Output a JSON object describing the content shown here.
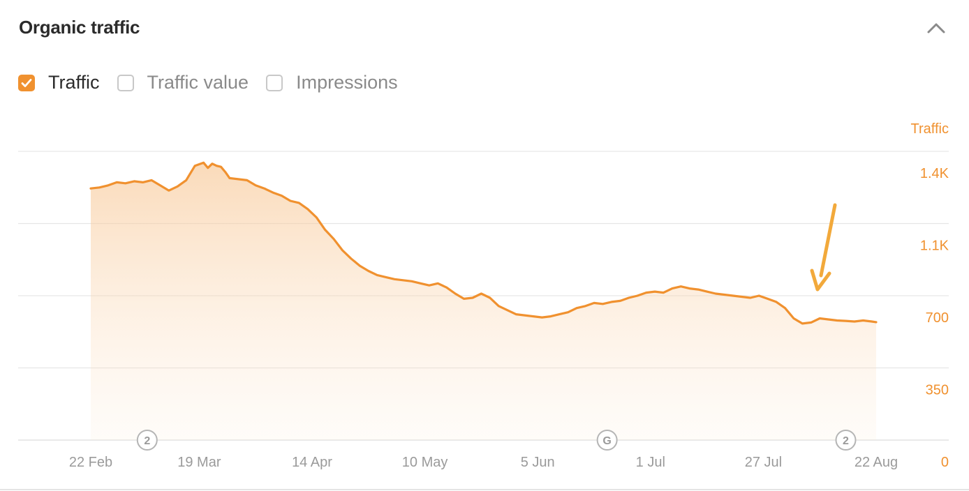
{
  "title": "Organic traffic",
  "toggles": [
    {
      "label": "Traffic",
      "checked": true
    },
    {
      "label": "Traffic value",
      "checked": false
    },
    {
      "label": "Impressions",
      "checked": false
    }
  ],
  "icons": {
    "collapse": "chevron-up-icon",
    "check": "check-icon"
  },
  "colors": {
    "accent": "#f0912f",
    "arrow": "#f2a93b",
    "grid": "#e6e6e6",
    "axis_text": "#9a9a9a",
    "marker": "#b5b5b5"
  },
  "chart_data": {
    "type": "area",
    "ylabel": "Traffic",
    "yticks": [
      "0",
      "350",
      "700",
      "1.1K",
      "1.4K"
    ],
    "ytick_values": [
      0,
      350,
      700,
      1050,
      1400
    ],
    "ylim": [
      0,
      1400
    ],
    "xticks": [
      "22 Feb",
      "19 Mar",
      "14 Apr",
      "10 May",
      "5 Jun",
      "1 Jul",
      "27 Jul",
      "22 Aug"
    ],
    "xtick_days": [
      0,
      25,
      51,
      77,
      103,
      129,
      155,
      181
    ],
    "grid": true,
    "series": [
      {
        "x_days": [
          0,
          2,
          4,
          6,
          8,
          10,
          12,
          14,
          16,
          18,
          20,
          22,
          24,
          26,
          27,
          28,
          29,
          30,
          31,
          32,
          34,
          36,
          38,
          40,
          42,
          44,
          46,
          48,
          50,
          52,
          54,
          56,
          58,
          60,
          62,
          64,
          66,
          68,
          70,
          72,
          74,
          76,
          78,
          80,
          82,
          84,
          86,
          88,
          90,
          92,
          94,
          96,
          98,
          100,
          102,
          104,
          106,
          108,
          110,
          112,
          114,
          116,
          118,
          120,
          122,
          124,
          126,
          128,
          130,
          132,
          134,
          136,
          138,
          140,
          142,
          144,
          146,
          148,
          150,
          152,
          154,
          156,
          158,
          160,
          162,
          164,
          166,
          168,
          170,
          172,
          174,
          176,
          178,
          180,
          181
        ],
        "values": [
          1220,
          1225,
          1235,
          1250,
          1245,
          1255,
          1250,
          1260,
          1235,
          1210,
          1230,
          1260,
          1330,
          1345,
          1320,
          1340,
          1330,
          1325,
          1300,
          1270,
          1265,
          1260,
          1235,
          1220,
          1200,
          1185,
          1160,
          1150,
          1120,
          1080,
          1020,
          975,
          920,
          880,
          845,
          820,
          800,
          790,
          780,
          775,
          770,
          760,
          750,
          760,
          740,
          710,
          685,
          690,
          710,
          690,
          650,
          630,
          610,
          605,
          600,
          595,
          600,
          610,
          620,
          640,
          650,
          665,
          660,
          670,
          675,
          690,
          700,
          715,
          720,
          715,
          735,
          745,
          735,
          730,
          720,
          710,
          705,
          700,
          695,
          690,
          700,
          685,
          670,
          640,
          590,
          565,
          570,
          590,
          585,
          580,
          578,
          575,
          580,
          575,
          572
        ]
      }
    ],
    "annotations": {
      "event_markers": [
        {
          "label": "2",
          "day": 13
        },
        {
          "label": "G",
          "day": 119
        },
        {
          "label": "2",
          "day": 174
        }
      ],
      "arrow": "down-arrow"
    }
  }
}
